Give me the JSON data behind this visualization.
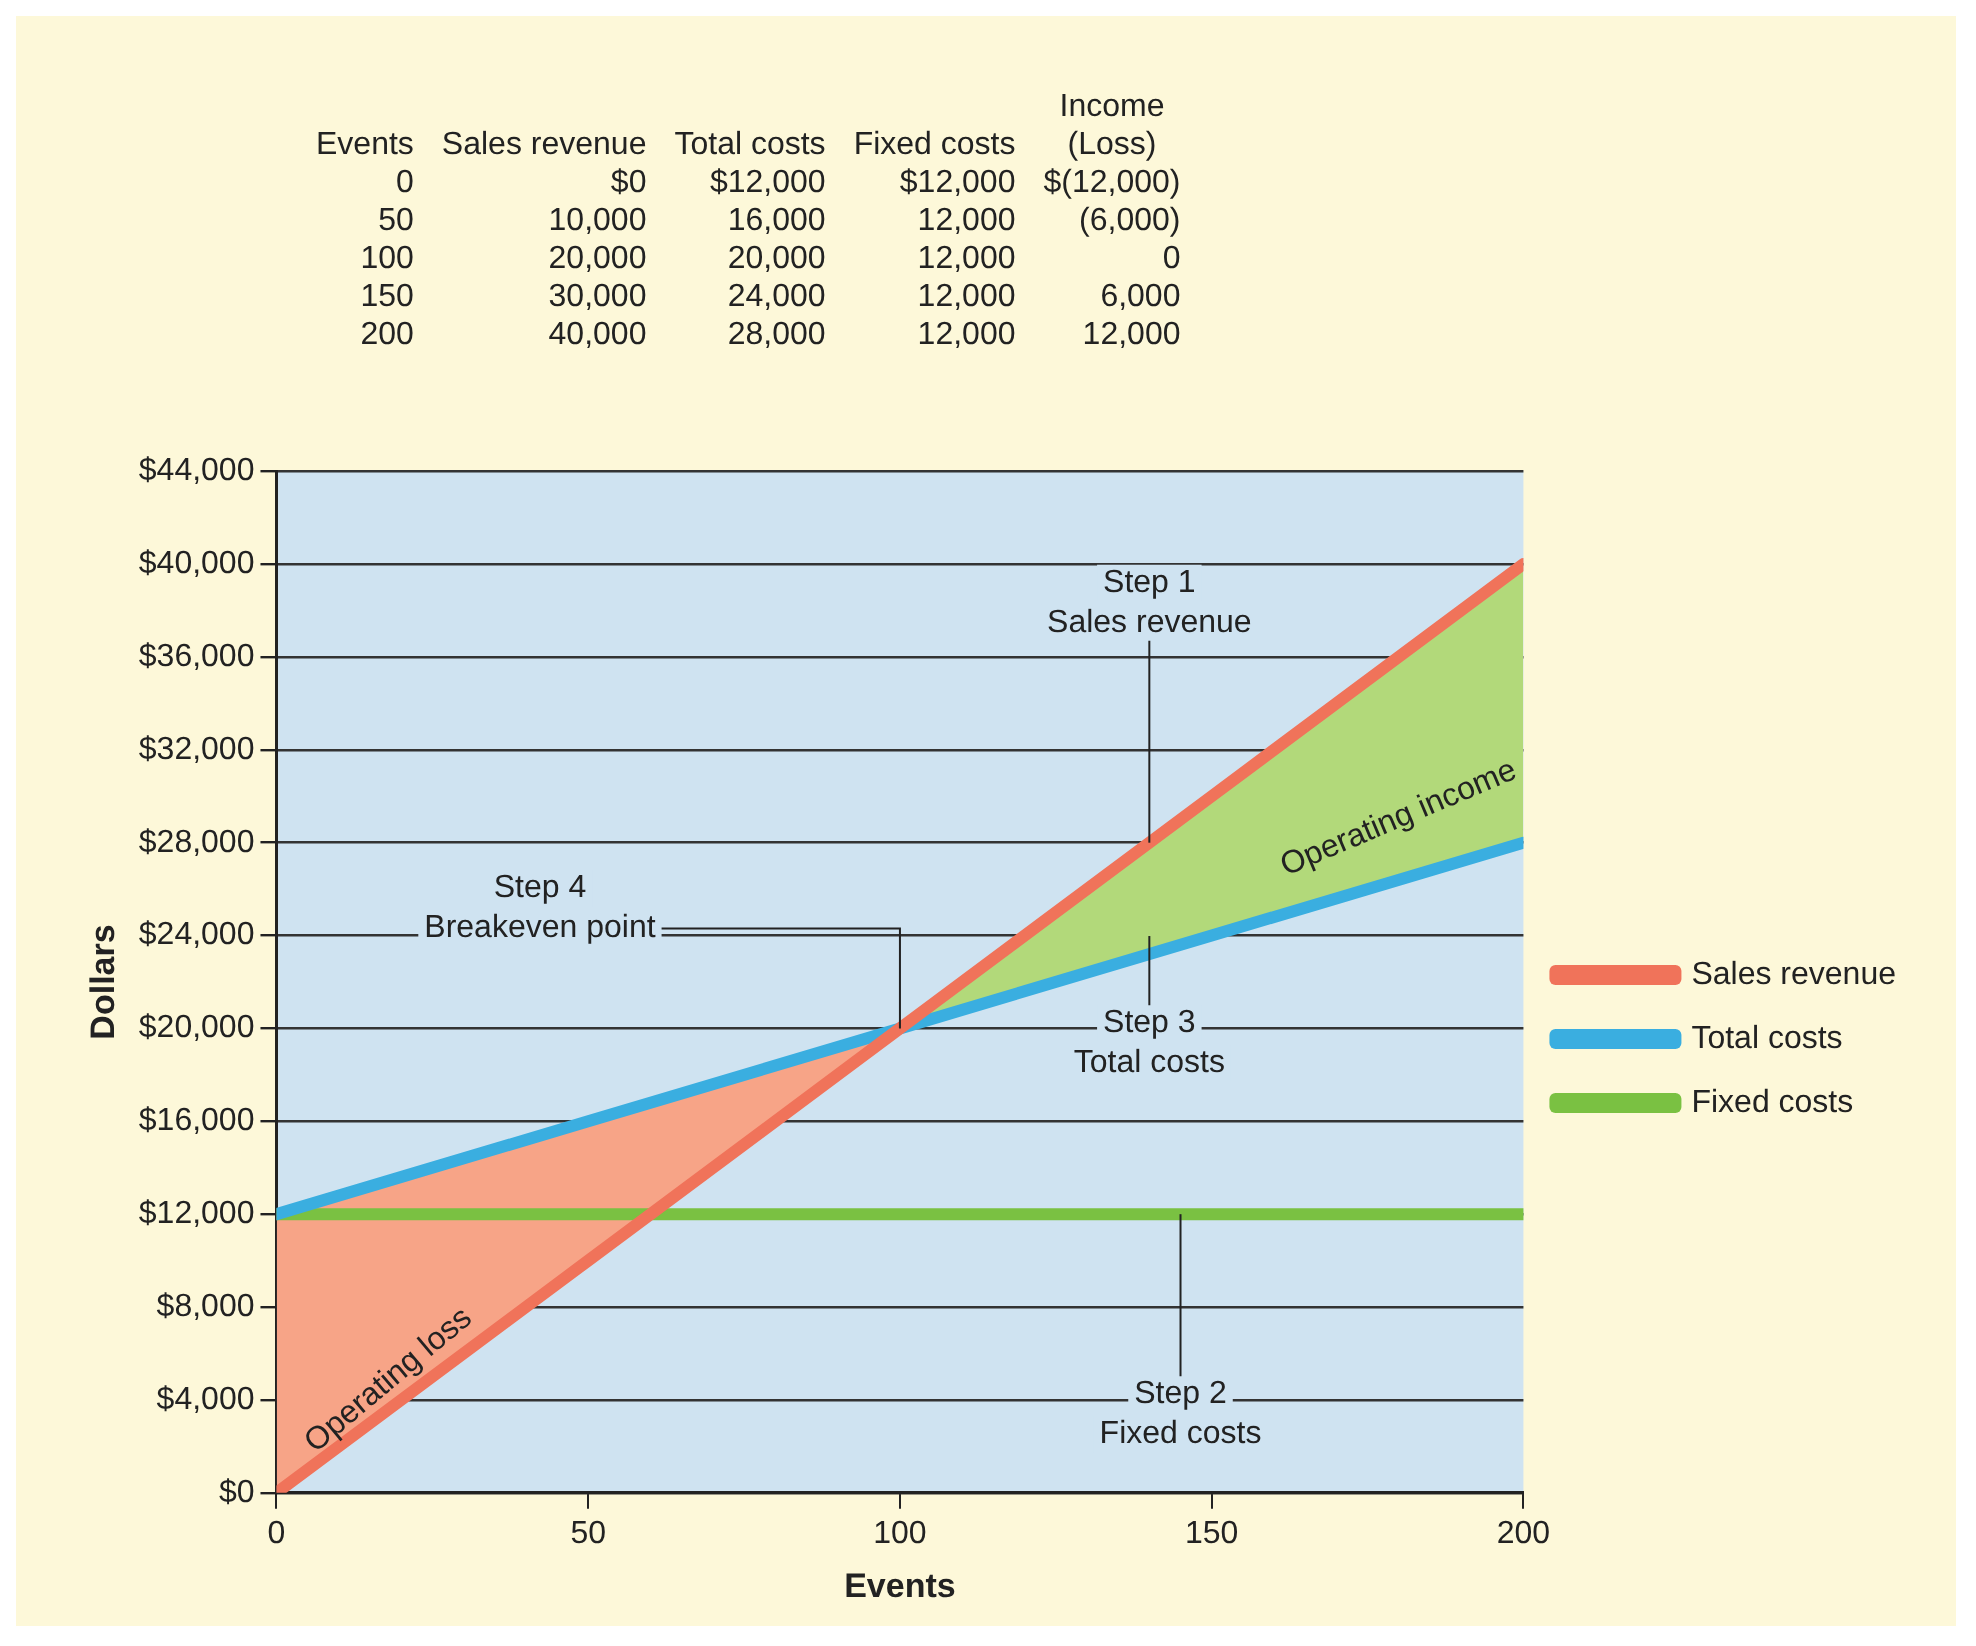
{
  "chart_data": {
    "type": "line",
    "xlabel": "Events",
    "ylabel": "Dollars",
    "x": [
      0,
      50,
      100,
      150,
      200
    ],
    "series": [
      {
        "name": "Sales revenue",
        "color": "#f0735a",
        "values": [
          0,
          10000,
          20000,
          30000,
          40000
        ]
      },
      {
        "name": "Total costs",
        "color": "#3aaee0",
        "values": [
          12000,
          16000,
          20000,
          24000,
          28000
        ]
      },
      {
        "name": "Fixed costs",
        "color": "#7ac142",
        "values": [
          12000,
          12000,
          12000,
          12000,
          12000
        ]
      }
    ],
    "xlim": [
      0,
      200
    ],
    "xticks": [
      0,
      50,
      100,
      150,
      200
    ],
    "ylim": [
      0,
      44000
    ],
    "yticks": [
      {
        "value": 0,
        "label": "$0"
      },
      {
        "value": 4000,
        "label": "$4,000"
      },
      {
        "value": 8000,
        "label": "$8,000"
      },
      {
        "value": 12000,
        "label": "$12,000"
      },
      {
        "value": 16000,
        "label": "$16,000"
      },
      {
        "value": 20000,
        "label": "$20,000"
      },
      {
        "value": 24000,
        "label": "$24,000"
      },
      {
        "value": 28000,
        "label": "$28,000"
      },
      {
        "value": 32000,
        "label": "$32,000"
      },
      {
        "value": 36000,
        "label": "$36,000"
      },
      {
        "value": 40000,
        "label": "$40,000"
      },
      {
        "value": 44000,
        "label": "$44,000"
      }
    ],
    "grid": "y",
    "legend": "right",
    "marker": "none",
    "line_style": "solid",
    "annotations": [
      "Events",
      "Sales revenue",
      "Total costs",
      "Fixed costs",
      "Income\n(Loss)",
      "0",
      "$0",
      "$12,000",
      "$12,000",
      "$(12,000)",
      "50",
      "10,000",
      "16,000",
      "12,000",
      "(6,000)",
      "100",
      "20,000",
      "20,000",
      "12,000",
      "0",
      "150",
      "30,000",
      "24,000",
      "12,000",
      "6,000",
      "200",
      "40,000",
      "28,000",
      "12,000",
      "12,000",
      "Step 3\nTotal costs",
      "Operating loss",
      "Operating income",
      {
        "text": "Step 1\nSales revenue",
        "x": 140,
        "y": 28000
      },
      {
        "text": "Step 2\nFixed costs",
        "x": 145,
        "y": 12000
      },
      {
        "text": "Step 4\nBreakeven point",
        "x": 100,
        "y": 20000
      }
    ]
  }
}
